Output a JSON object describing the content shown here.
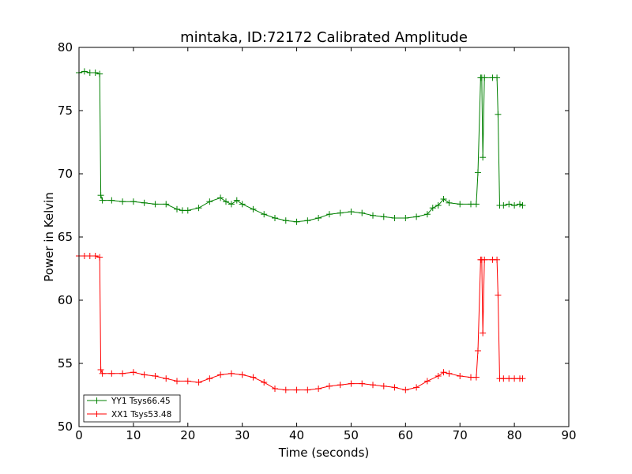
{
  "chart_data": {
    "type": "line",
    "title": "mintaka, ID:72172 Calibrated Amplitude",
    "xlabel": "Time (seconds)",
    "ylabel": "Power in Kelvin",
    "xlim": [
      0,
      90
    ],
    "ylim": [
      50,
      80
    ],
    "xticks": [
      0,
      10,
      20,
      30,
      40,
      50,
      60,
      70,
      80,
      90
    ],
    "yticks": [
      50,
      55,
      60,
      65,
      70,
      75,
      80
    ],
    "grid": false,
    "legend_position": "lower-left",
    "marker": "+",
    "series": [
      {
        "name": "YY1 Tsys66.45",
        "color": "#008000",
        "x": [
          0,
          1,
          2,
          3,
          3.8,
          4.0,
          4.3,
          6,
          8,
          10,
          12,
          14,
          16,
          18,
          19,
          20,
          22,
          24,
          26,
          27,
          28,
          29,
          30,
          32,
          34,
          36,
          38,
          40,
          42,
          44,
          46,
          48,
          50,
          52,
          54,
          56,
          58,
          60,
          62,
          64,
          65,
          66,
          67,
          68,
          70,
          72,
          73,
          73.3,
          73.8,
          74.0,
          74.2,
          74.5,
          76,
          76.8,
          77.0,
          77.3,
          78,
          79,
          80,
          81,
          81.5
        ],
        "y": [
          78.0,
          78.1,
          78.0,
          78.0,
          77.9,
          68.3,
          67.9,
          67.9,
          67.8,
          67.8,
          67.7,
          67.6,
          67.6,
          67.2,
          67.1,
          67.1,
          67.3,
          67.8,
          68.1,
          67.8,
          67.6,
          67.9,
          67.6,
          67.2,
          66.8,
          66.5,
          66.3,
          66.2,
          66.3,
          66.5,
          66.8,
          66.9,
          67.0,
          66.9,
          66.7,
          66.6,
          66.5,
          66.5,
          66.6,
          66.8,
          67.3,
          67.5,
          68.0,
          67.7,
          67.6,
          67.6,
          67.6,
          70.1,
          77.6,
          77.6,
          71.3,
          77.6,
          77.6,
          77.6,
          74.7,
          67.5,
          67.5,
          67.6,
          67.5,
          67.6,
          67.5
        ]
      },
      {
        "name": "XX1 Tsys53.48",
        "color": "#ff0000",
        "x": [
          0,
          1,
          2,
          3,
          3.8,
          4.0,
          4.3,
          6,
          8,
          10,
          12,
          14,
          16,
          18,
          20,
          22,
          24,
          26,
          28,
          30,
          32,
          34,
          36,
          38,
          40,
          42,
          44,
          46,
          48,
          50,
          52,
          54,
          56,
          58,
          60,
          62,
          64,
          66,
          67,
          68,
          70,
          72,
          73,
          73.3,
          73.8,
          74.0,
          74.2,
          74.5,
          76,
          76.8,
          77.0,
          77.3,
          78,
          79,
          80,
          81,
          81.5
        ],
        "y": [
          63.5,
          63.5,
          63.5,
          63.5,
          63.4,
          54.5,
          54.2,
          54.2,
          54.2,
          54.3,
          54.1,
          54.0,
          53.8,
          53.6,
          53.6,
          53.5,
          53.8,
          54.1,
          54.2,
          54.1,
          53.9,
          53.5,
          53.0,
          52.9,
          52.9,
          52.9,
          53.0,
          53.2,
          53.3,
          53.4,
          53.4,
          53.3,
          53.2,
          53.1,
          52.9,
          53.1,
          53.6,
          54.0,
          54.3,
          54.2,
          54.0,
          53.9,
          53.9,
          56.0,
          63.2,
          63.2,
          57.4,
          63.2,
          63.2,
          63.2,
          60.4,
          53.8,
          53.8,
          53.8,
          53.8,
          53.8,
          53.8
        ]
      }
    ]
  }
}
